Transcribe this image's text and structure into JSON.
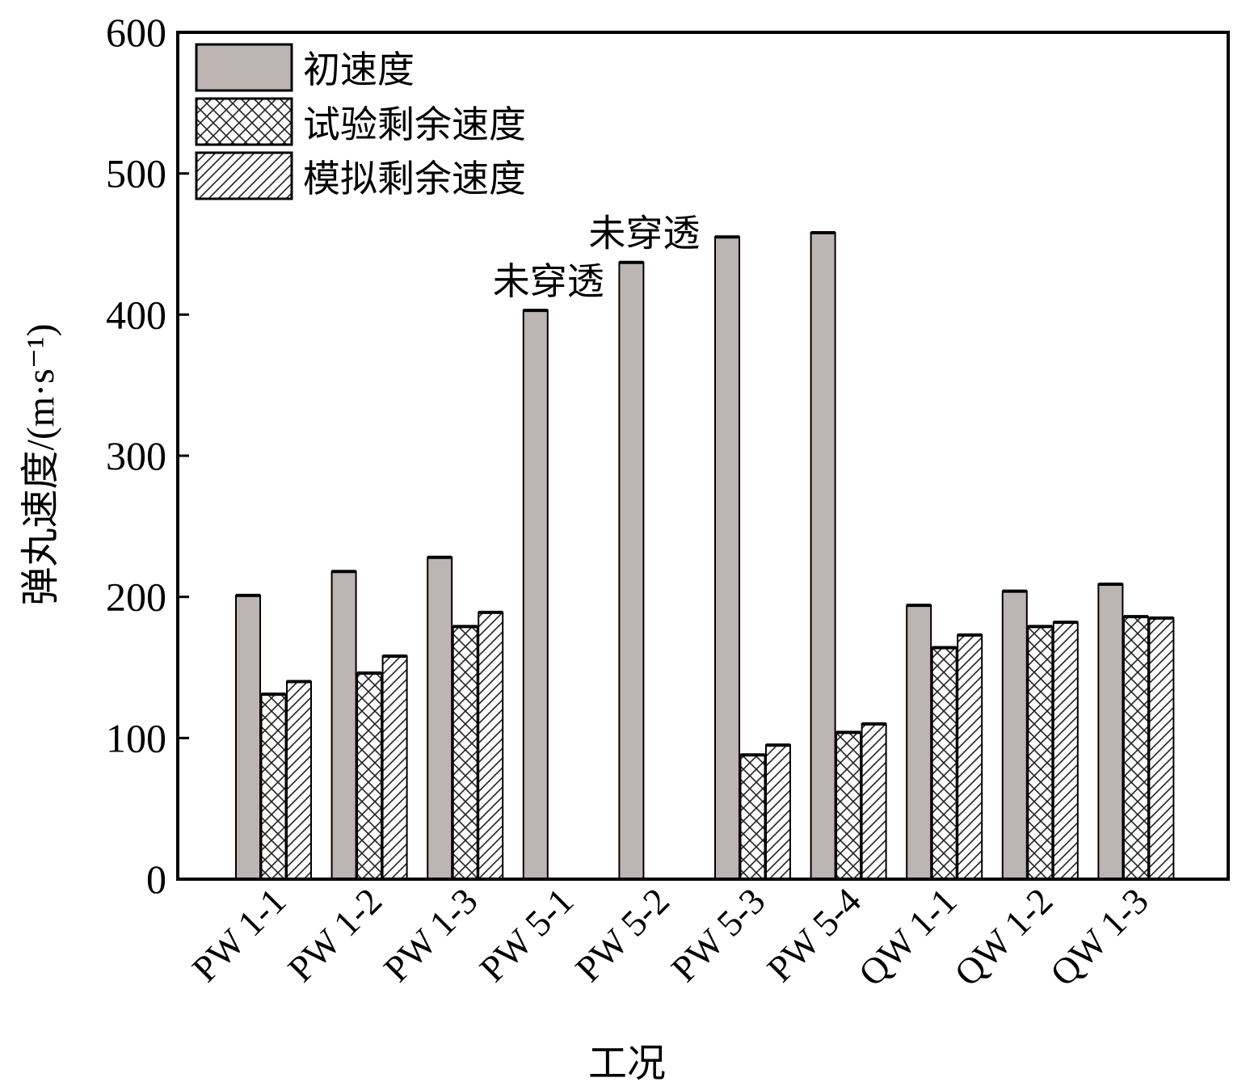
{
  "chart_data": {
    "type": "bar",
    "xlabel": "工况",
    "ylabel": "弹丸速度/(m·s⁻¹)",
    "ylim": [
      0,
      600
    ],
    "yticks": [
      0,
      100,
      200,
      300,
      400,
      500,
      600
    ],
    "grid": false,
    "legend_position": "top-left",
    "categories": [
      "PW 1-1",
      "PW 1-2",
      "PW 1-3",
      "PW 5-1",
      "PW 5-2",
      "PW 5-3",
      "PW 5-4",
      "QW 1-1",
      "QW 1-2",
      "QW 1-3"
    ],
    "series": [
      {
        "name": "初速度",
        "pattern": "solid",
        "color": "#bdb5b3",
        "values": [
          201,
          218,
          228,
          403,
          437,
          455,
          458,
          194,
          204,
          209
        ]
      },
      {
        "name": "试验剩余速度",
        "pattern": "crosshatch",
        "color": "#ffffff",
        "values": [
          131,
          146,
          179,
          0,
          0,
          88,
          104,
          164,
          179,
          186
        ]
      },
      {
        "name": "模拟剩余速度",
        "pattern": "diagonal",
        "color": "#ffffff",
        "values": [
          140,
          158,
          189,
          0,
          0,
          95,
          110,
          173,
          182,
          185
        ]
      }
    ],
    "annotations": [
      {
        "text": "未穿透",
        "category": "PW 5-1"
      },
      {
        "text": "未穿透",
        "category": "PW 5-2"
      }
    ]
  }
}
